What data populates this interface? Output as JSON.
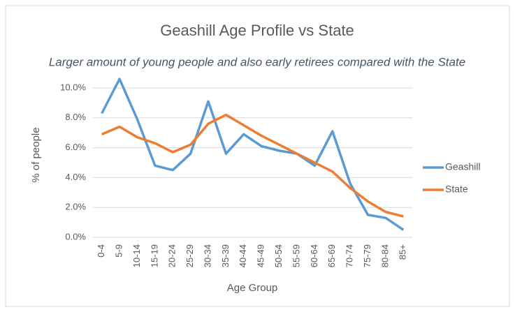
{
  "chart_data": {
    "type": "line",
    "title": "Geashill Age Profile vs State",
    "subtitle": "Larger amount of young people and also early retirees compared with the State",
    "x_label": "Age Group",
    "y_label": "% of people",
    "categories": [
      "0-4",
      "5-9",
      "10-14",
      "15-19",
      "20-24",
      "25-29",
      "30-34",
      "35-39",
      "40-44",
      "45-49",
      "50-54",
      "55-59",
      "60-64",
      "65-69",
      "70-74",
      "75-79",
      "80-84",
      "85+"
    ],
    "series": [
      {
        "name": "Geashill",
        "color": "#5b9bd5",
        "values": [
          8.3,
          10.6,
          7.9,
          4.8,
          4.5,
          5.6,
          9.1,
          5.6,
          6.9,
          6.1,
          5.8,
          5.6,
          4.8,
          7.1,
          3.6,
          1.5,
          1.3,
          0.5
        ]
      },
      {
        "name": "State",
        "color": "#ed7d31",
        "values": [
          6.9,
          7.4,
          6.7,
          6.3,
          5.7,
          6.2,
          7.6,
          8.2,
          7.5,
          6.8,
          6.2,
          5.6,
          5.0,
          4.4,
          3.3,
          2.4,
          1.7,
          1.4
        ]
      }
    ],
    "ylim": [
      0,
      11
    ],
    "yticks": [
      {
        "value": 0,
        "label": "0.0%"
      },
      {
        "value": 2,
        "label": "2.0%"
      },
      {
        "value": 4,
        "label": "4.0%"
      },
      {
        "value": 6,
        "label": "6.0%"
      },
      {
        "value": 8,
        "label": "8.0%"
      },
      {
        "value": 10,
        "label": "10.0%"
      }
    ],
    "grid": true,
    "legend": "right"
  }
}
